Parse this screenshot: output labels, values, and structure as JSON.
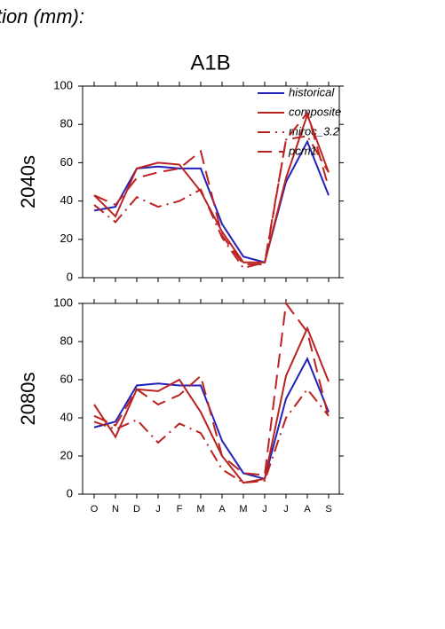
{
  "title": "tion (mm):",
  "subtitle": "A1B",
  "chart_data": [
    {
      "type": "line",
      "ylabel": "2040s",
      "categories": [
        null,
        null,
        null,
        null,
        null,
        null,
        null,
        null,
        null,
        null,
        null,
        null
      ],
      "ylim": [
        0,
        100
      ],
      "yticks": [
        0,
        20,
        40,
        60,
        80,
        100
      ],
      "legend": "upper right",
      "series": [
        {
          "name": "historical",
          "color": "#2222bb",
          "style": "solid",
          "values": [
            35,
            37,
            57,
            58,
            57,
            57,
            28,
            11,
            8,
            50,
            71,
            43
          ]
        },
        {
          "name": "composite",
          "color": "#bb2222",
          "style": "solid",
          "values": [
            43,
            32,
            57,
            60,
            59,
            45,
            24,
            8,
            8,
            52,
            85,
            55
          ]
        },
        {
          "name": "miroc_3.2",
          "color": "#bb2222",
          "style": "dashdot",
          "values": [
            38,
            29,
            42,
            37,
            40,
            46,
            21,
            5,
            8,
            72,
            74,
            55
          ]
        },
        {
          "name": "pcm1",
          "color": "#bb2222",
          "style": "dashed",
          "values": [
            43,
            38,
            52,
            55,
            57,
            66,
            22,
            7,
            7,
            72,
            86,
            47
          ]
        }
      ]
    },
    {
      "type": "line",
      "ylabel": "2080s",
      "categories": [
        "O",
        "N",
        "D",
        "J",
        "F",
        "M",
        "A",
        "M",
        "J",
        "J",
        "A",
        "S"
      ],
      "ylim": [
        0,
        100
      ],
      "yticks": [
        0,
        20,
        40,
        60,
        80,
        100
      ],
      "series": [
        {
          "color": "#2222bb",
          "style": "solid",
          "values": [
            35,
            38,
            57,
            58,
            57,
            57,
            28,
            11,
            8,
            50,
            71,
            43
          ]
        },
        {
          "color": "#bb2222",
          "style": "solid",
          "values": [
            47,
            30,
            55,
            54,
            60,
            43,
            20,
            6,
            8,
            62,
            87,
            59
          ]
        },
        {
          "color": "#bb2222",
          "style": "dashdot",
          "values": [
            38,
            34,
            39,
            27,
            37,
            32,
            13,
            6,
            7,
            40,
            55,
            41
          ]
        },
        {
          "color": "#bb2222",
          "style": "dashed",
          "values": [
            41,
            36,
            55,
            47,
            52,
            62,
            20,
            11,
            10,
            100,
            85,
            40
          ]
        }
      ]
    }
  ]
}
